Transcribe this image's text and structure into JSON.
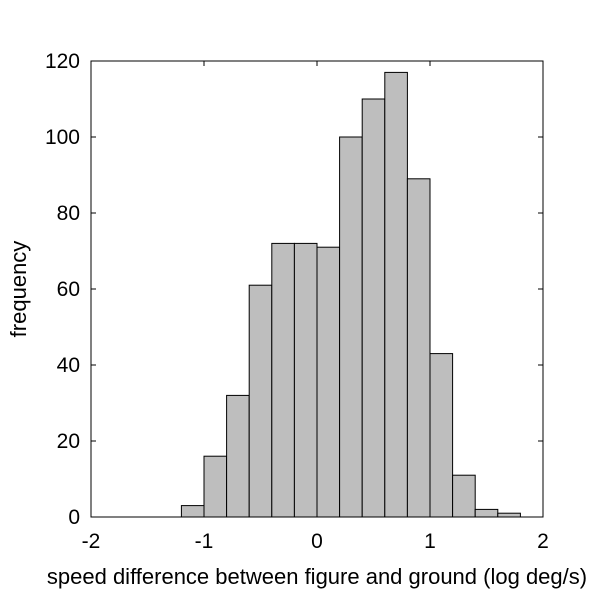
{
  "chart_data": {
    "type": "bar",
    "title": "",
    "xlabel": "speed difference between figure and ground (log deg/s)",
    "ylabel": "frequency",
    "xlim": [
      -2,
      2
    ],
    "ylim": [
      0,
      120
    ],
    "xticks": [
      "-2",
      "-1",
      "0",
      "1",
      "2"
    ],
    "yticks": [
      "0",
      "20",
      "40",
      "60",
      "80",
      "100",
      "120"
    ],
    "bin_width": 0.2,
    "bins": [
      {
        "x0": -1.2,
        "x1": -1.0,
        "value": 3
      },
      {
        "x0": -1.0,
        "x1": -0.8,
        "value": 16
      },
      {
        "x0": -0.8,
        "x1": -0.6,
        "value": 32
      },
      {
        "x0": -0.6,
        "x1": -0.4,
        "value": 61
      },
      {
        "x0": -0.4,
        "x1": -0.2,
        "value": 72
      },
      {
        "x0": -0.2,
        "x1": 0.0,
        "value": 72
      },
      {
        "x0": 0.0,
        "x1": 0.2,
        "value": 71
      },
      {
        "x0": 0.2,
        "x1": 0.4,
        "value": 100
      },
      {
        "x0": 0.4,
        "x1": 0.6,
        "value": 110
      },
      {
        "x0": 0.6,
        "x1": 0.8,
        "value": 117
      },
      {
        "x0": 0.8,
        "x1": 1.0,
        "value": 89
      },
      {
        "x0": 1.0,
        "x1": 1.2,
        "value": 43
      },
      {
        "x0": 1.2,
        "x1": 1.4,
        "value": 11
      },
      {
        "x0": 1.4,
        "x1": 1.6,
        "value": 2
      },
      {
        "x0": 1.6,
        "x1": 1.8,
        "value": 1
      }
    ],
    "bar_color": "#bebebe",
    "edge_color": "#000000",
    "grid": false,
    "legend": "none"
  }
}
